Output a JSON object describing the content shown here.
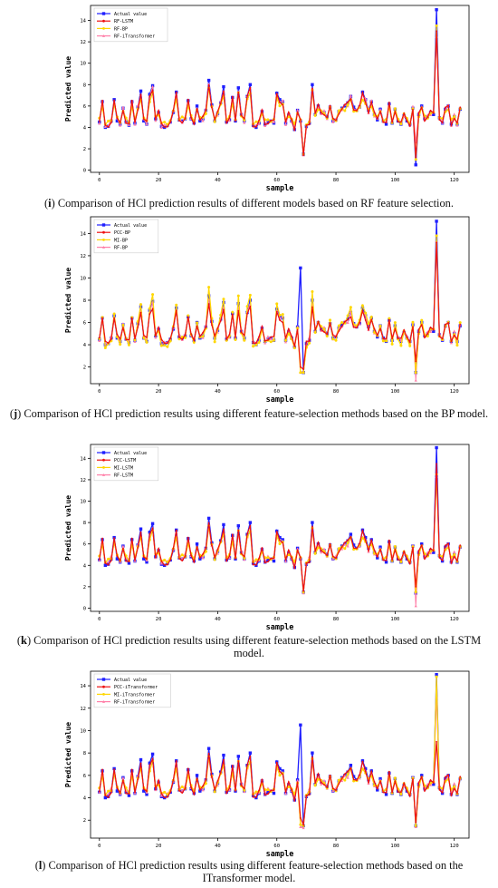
{
  "chart_data": [
    {
      "type": "line",
      "letter": "i",
      "caption": "Comparison of HCl prediction results of different models based on RF feature selection.",
      "xlabel": "sample",
      "ylabel": "Predicted value",
      "xlim": [
        -3,
        125
      ],
      "ylim": [
        -0.2,
        15.4
      ],
      "xticks": [
        0,
        20,
        40,
        60,
        80,
        100,
        120
      ],
      "yticks": [
        0,
        2,
        4,
        6,
        8,
        10,
        12,
        14
      ],
      "legend_position": "top-left",
      "legend": [
        "Actual value",
        "RF-LSTM",
        "RF-BP",
        "RF-iTransformer"
      ],
      "spikes": [
        [
          69,
          1.5,
          1.4,
          1.5,
          1.4
        ],
        [
          107,
          0.5,
          1.2,
          1.0,
          2.6
        ],
        [
          114,
          15.0,
          13.0,
          13.5,
          12.5
        ]
      ],
      "amp": [
        1.0,
        0.8,
        1.0
      ]
    },
    {
      "type": "line",
      "letter": "j",
      "caption": "Comparison of HCl prediction results using different feature-selection methods based on the BP model.",
      "xlabel": "sample",
      "ylabel": "Predicted value",
      "xlim": [
        -3,
        125
      ],
      "ylim": [
        0.5,
        15.5
      ],
      "xticks": [
        0,
        20,
        40,
        60,
        80,
        100,
        120
      ],
      "yticks": [
        2,
        4,
        6,
        8,
        10,
        12,
        14
      ],
      "legend_position": "top-left",
      "legend": [
        "Actual value",
        "PCC-BP",
        "MI-BP",
        "RF-BP"
      ],
      "spikes": [
        [
          68,
          10.9,
          2.0,
          1.5,
          1.5
        ],
        [
          69,
          1.5,
          1.8,
          1.5,
          1.6
        ],
        [
          107,
          1.5,
          2.5,
          1.5,
          0.8
        ],
        [
          114,
          15.1,
          13.2,
          13.8,
          13.3
        ]
      ],
      "amp": [
        0.9,
        1.3,
        1.0
      ]
    },
    {
      "type": "line",
      "letter": "k",
      "caption": "Comparison of HCl prediction results using different feature-selection methods based on the LSTM model.",
      "xlabel": "sample",
      "ylabel": "Predicted value",
      "xlim": [
        -3,
        125
      ],
      "ylim": [
        -0.3,
        15.3
      ],
      "xticks": [
        0,
        20,
        40,
        60,
        80,
        100,
        120
      ],
      "yticks": [
        0,
        2,
        4,
        6,
        8,
        10,
        12,
        14
      ],
      "legend_position": "top-left",
      "legend": [
        "Actual value",
        "PCC-LSTM",
        "MI-LSTM",
        "RF-LSTM"
      ],
      "spikes": [
        [
          69,
          1.5,
          1.6,
          1.5,
          1.4
        ],
        [
          107,
          1.4,
          2.0,
          1.5,
          0.2
        ],
        [
          114,
          15.0,
          13.5,
          12.5,
          12.3
        ]
      ],
      "amp": [
        1.0,
        0.8,
        0.8
      ]
    },
    {
      "type": "line",
      "letter": "l",
      "caption": "Comparison of HCl prediction results using different feature-selection methods based on the ITransformer model.",
      "xlabel": "sample",
      "ylabel": "Predicted value",
      "xlim": [
        -3,
        125
      ],
      "ylim": [
        0.4,
        15.3
      ],
      "xticks": [
        0,
        20,
        40,
        60,
        80,
        100,
        120
      ],
      "yticks": [
        2,
        4,
        6,
        8,
        10,
        12,
        14
      ],
      "legend_position": "top-left",
      "legend": [
        "Actual value",
        "PCC-iTransformer",
        "MI-iTransformer",
        "RF-iTransformer"
      ],
      "spikes": [
        [
          68,
          10.5,
          2.2,
          1.6,
          1.4
        ],
        [
          69,
          1.5,
          1.6,
          1.5,
          1.3
        ],
        [
          107,
          1.5,
          1.8,
          1.5,
          1.4
        ],
        [
          114,
          15.0,
          9.0,
          14.8,
          13.0
        ]
      ],
      "amp": [
        1.0,
        0.8,
        0.8
      ]
    }
  ],
  "series_colors": [
    "#1f1fff",
    "#ee1111",
    "#ffd700",
    "#ff7fa8"
  ],
  "actual_value_base": [
    4.5,
    6.4,
    4.0,
    4.1,
    4.6,
    6.6,
    4.6,
    4.3,
    5.8,
    4.5,
    4.2,
    6.4,
    4.4,
    5.9,
    7.4,
    4.6,
    4.3,
    7.1,
    7.9,
    4.8,
    5.4,
    4.1,
    4.0,
    4.2,
    4.5,
    5.4,
    7.3,
    4.7,
    4.6,
    4.8,
    6.5,
    4.8,
    4.4,
    6.0,
    4.6,
    4.8,
    5.6,
    8.4,
    6.1,
    4.6,
    5.3,
    6.3,
    7.8,
    4.5,
    4.7,
    6.8,
    4.6,
    7.7,
    5.2,
    4.6,
    6.9,
    8.0,
    4.2,
    4.0,
    4.4,
    5.5,
    4.3,
    4.5,
    4.6,
    4.4,
    7.2,
    6.6,
    6.4,
    4.4,
    5.2,
    4.6,
    3.8,
    5.6,
    4.6,
    1.5,
    4.1,
    4.4,
    8.0,
    5.2,
    6.0,
    5.4,
    5.4,
    5.0,
    5.9,
    4.6,
    4.7,
    5.5,
    5.8,
    6.0,
    6.3,
    6.9,
    5.9,
    5.6,
    5.9,
    7.3,
    6.6,
    5.6,
    6.4,
    5.2,
    4.7,
    5.7,
    4.6,
    4.3,
    6.2,
    4.4,
    5.7,
    4.6,
    4.3,
    5.1,
    4.6,
    4.3,
    5.8,
    1.5,
    5.2,
    6.0,
    4.8,
    5.0,
    5.4,
    5.2,
    15.0,
    4.9,
    4.4,
    5.7,
    6.0,
    4.3,
    5.0,
    4.3,
    5.7
  ]
}
